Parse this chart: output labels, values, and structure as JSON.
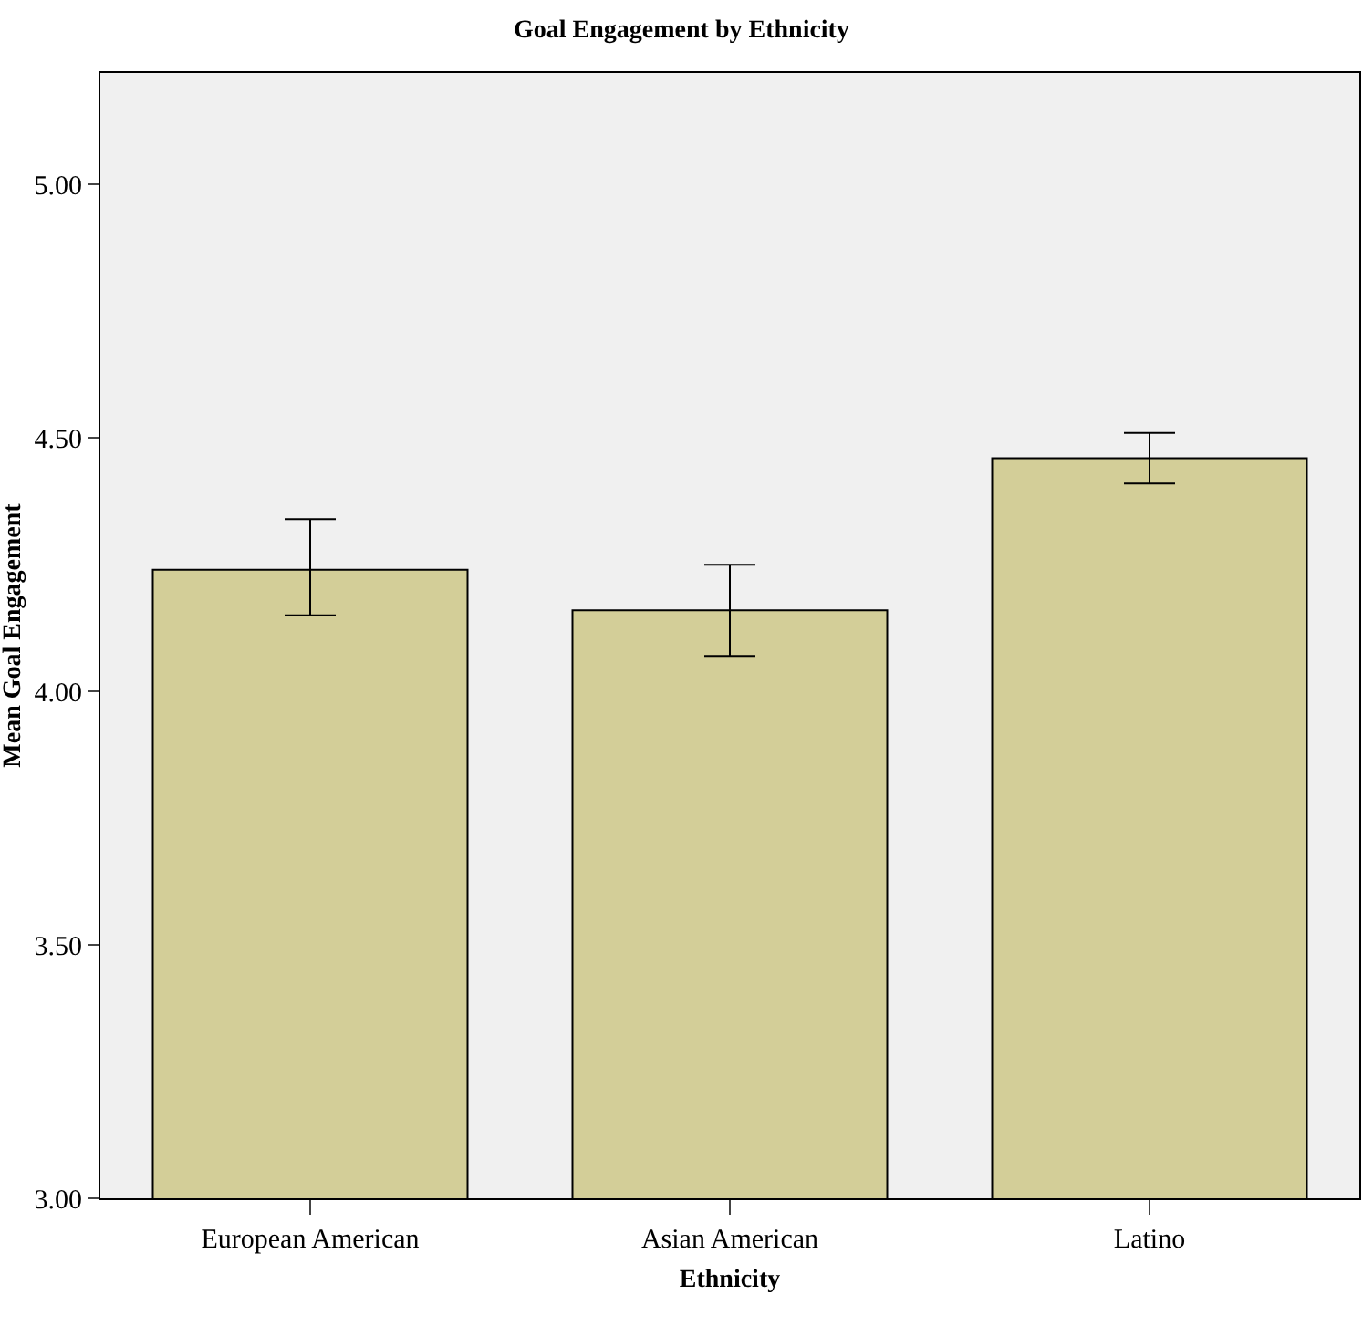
{
  "chart_data": {
    "type": "bar",
    "title": "Goal Engagement by Ethnicity",
    "xlabel": "Ethnicity",
    "ylabel": "Mean Goal Engagement",
    "categories": [
      "European American",
      "Asian American",
      "Latino"
    ],
    "values": [
      4.24,
      4.16,
      4.46
    ],
    "errors": [
      [
        4.15,
        4.34
      ],
      [
        4.07,
        4.25
      ],
      [
        4.41,
        4.51
      ]
    ],
    "color": "#d3ce98",
    "ylim": [
      3,
      5.22
    ],
    "yticks": [
      {
        "value": 3,
        "label": "3.00"
      },
      {
        "value": 3.5,
        "label": "3.50"
      },
      {
        "value": 4,
        "label": "4.00"
      },
      {
        "value": 4.5,
        "label": "4.50"
      },
      {
        "value": 5,
        "label": "5.00"
      }
    ],
    "grid": false,
    "legend": false
  }
}
